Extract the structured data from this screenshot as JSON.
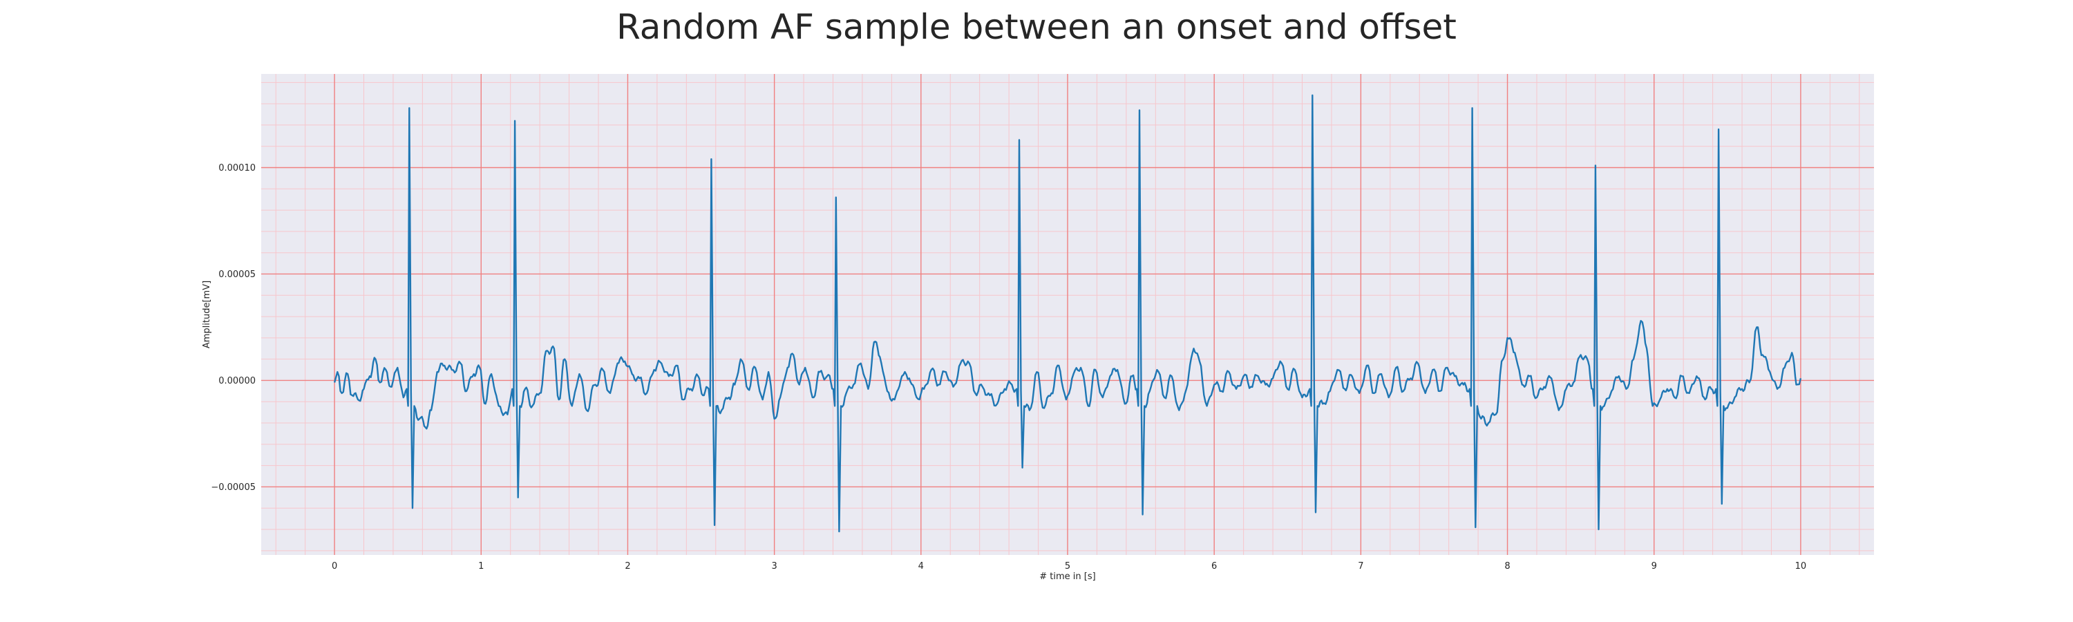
{
  "chart_data": {
    "type": "line",
    "title": "Random AF sample between an onset and offset",
    "xlabel": "# time in [s]",
    "ylabel": "Amplitude[mV]",
    "xlim": [
      -0.5,
      10.5
    ],
    "ylim": [
      -8.2e-05,
      0.000144
    ],
    "x_ticks": [
      0,
      1,
      2,
      3,
      4,
      5,
      6,
      7,
      8,
      9,
      10
    ],
    "x_tick_labels": [
      "0",
      "1",
      "2",
      "3",
      "4",
      "5",
      "6",
      "7",
      "8",
      "9",
      "10"
    ],
    "y_ticks": [
      -5e-05,
      0.0,
      5e-05,
      0.0001
    ],
    "y_tick_labels": [
      "−0.00005",
      "0.00000",
      "0.00005",
      "0.00010"
    ],
    "grid": true,
    "colors": {
      "line": "#1f77b4",
      "major_grid": "#f08080",
      "minor_grid": "#f7c6cc",
      "plot_bg": "#eaeaf2"
    },
    "r_peaks": [
      {
        "t": 0.51,
        "peak": 0.000128,
        "trough": -6e-05
      },
      {
        "t": 1.23,
        "peak": 0.000122,
        "trough": -5.5e-05
      },
      {
        "t": 2.57,
        "peak": 0.000104,
        "trough": -6.8e-05
      },
      {
        "t": 3.42,
        "peak": 8.6e-05,
        "trough": -7.1e-05
      },
      {
        "t": 4.67,
        "peak": 0.000113,
        "trough": -4.1e-05
      },
      {
        "t": 5.49,
        "peak": 0.000127,
        "trough": -6.3e-05
      },
      {
        "t": 6.67,
        "peak": 0.000134,
        "trough": -6.2e-05
      },
      {
        "t": 7.76,
        "peak": 0.000128,
        "trough": -6.9e-05
      },
      {
        "t": 8.6,
        "peak": 0.000101,
        "trough": -7e-05
      },
      {
        "t": 9.44,
        "peak": 0.000118,
        "trough": -5.8e-05
      }
    ],
    "baseline_points": [
      [
        0.0,
        -1e-06
      ],
      [
        0.02,
        4e-06
      ],
      [
        0.05,
        -6e-06
      ],
      [
        0.09,
        3e-06
      ],
      [
        0.12,
        -7e-06
      ],
      [
        0.16,
        -9e-06
      ],
      [
        0.2,
        -4e-06
      ],
      [
        0.24,
        2e-06
      ],
      [
        0.28,
        1e-05
      ],
      [
        0.31,
        -1e-06
      ],
      [
        0.35,
        5e-06
      ],
      [
        0.39,
        -3e-06
      ],
      [
        0.43,
        6e-06
      ],
      [
        0.47,
        -8e-06
      ],
      [
        0.58,
        -1.8e-05
      ],
      [
        0.62,
        -2.2e-05
      ],
      [
        0.66,
        -1.4e-05
      ],
      [
        0.7,
        4e-06
      ],
      [
        0.75,
        7e-06
      ],
      [
        0.8,
        5e-06
      ],
      [
        0.86,
        8e-06
      ],
      [
        0.9,
        -5e-06
      ],
      [
        0.95,
        3e-06
      ],
      [
        0.99,
        6e-06
      ],
      [
        1.03,
        -1.1e-05
      ],
      [
        1.07,
        3e-06
      ],
      [
        1.12,
        -1.2e-05
      ],
      [
        1.18,
        -1.6e-05
      ],
      [
        1.3,
        -4e-06
      ],
      [
        1.35,
        -1.2e-05
      ],
      [
        1.4,
        -6e-06
      ],
      [
        1.45,
        1.4e-05
      ],
      [
        1.49,
        1.6e-05
      ],
      [
        1.53,
        -9e-06
      ],
      [
        1.57,
        1e-05
      ],
      [
        1.62,
        -1.2e-05
      ],
      [
        1.67,
        3e-06
      ],
      [
        1.72,
        -1.4e-05
      ],
      [
        1.78,
        -2e-06
      ],
      [
        1.83,
        5e-06
      ],
      [
        1.88,
        -6e-06
      ],
      [
        1.93,
        8e-06
      ],
      [
        1.98,
        9e-06
      ],
      [
        2.03,
        3e-06
      ],
      [
        2.08,
        1e-06
      ],
      [
        2.13,
        -6e-06
      ],
      [
        2.18,
        5e-06
      ],
      [
        2.23,
        8e-06
      ],
      [
        2.28,
        2e-06
      ],
      [
        2.33,
        7e-06
      ],
      [
        2.38,
        -9e-06
      ],
      [
        2.43,
        -4e-06
      ],
      [
        2.48,
        2e-06
      ],
      [
        2.52,
        -7e-06
      ],
      [
        2.64,
        -1.4e-05
      ],
      [
        2.69,
        -8e-06
      ],
      [
        2.73,
        -2e-06
      ],
      [
        2.77,
        1e-05
      ],
      [
        2.82,
        -4e-06
      ],
      [
        2.87,
        6e-06
      ],
      [
        2.92,
        -9e-06
      ],
      [
        2.96,
        4e-06
      ],
      [
        3.0,
        -1.8e-05
      ],
      [
        3.04,
        -8e-06
      ],
      [
        3.09,
        6e-06
      ],
      [
        3.13,
        1.2e-05
      ],
      [
        3.17,
        -2e-06
      ],
      [
        3.21,
        6e-06
      ],
      [
        3.26,
        -8e-06
      ],
      [
        3.31,
        4e-06
      ],
      [
        3.36,
        2e-06
      ],
      [
        3.49,
        -6e-06
      ],
      [
        3.54,
        -2e-06
      ],
      [
        3.59,
        8e-06
      ],
      [
        3.64,
        -4e-06
      ],
      [
        3.68,
        1.8e-05
      ],
      [
        3.72,
        1.1e-05
      ],
      [
        3.77,
        -5e-06
      ],
      [
        3.82,
        -9e-06
      ],
      [
        3.87,
        2e-06
      ],
      [
        3.92,
        1e-06
      ],
      [
        3.97,
        -8e-06
      ],
      [
        4.02,
        -4e-06
      ],
      [
        4.07,
        5e-06
      ],
      [
        4.12,
        -2e-06
      ],
      [
        4.17,
        4e-06
      ],
      [
        4.22,
        -3e-06
      ],
      [
        4.27,
        8e-06
      ],
      [
        4.32,
        9e-06
      ],
      [
        4.37,
        -6e-06
      ],
      [
        4.42,
        -3e-06
      ],
      [
        4.47,
        -7e-06
      ],
      [
        4.52,
        -1.1e-05
      ],
      [
        4.57,
        -4e-06
      ],
      [
        4.62,
        -2e-06
      ],
      [
        4.74,
        -1.4e-05
      ],
      [
        4.79,
        4e-06
      ],
      [
        4.84,
        -1.3e-05
      ],
      [
        4.89,
        -6e-06
      ],
      [
        4.94,
        7e-06
      ],
      [
        4.99,
        -9e-06
      ],
      [
        5.04,
        3e-06
      ],
      [
        5.09,
        6e-06
      ],
      [
        5.14,
        -1.2e-05
      ],
      [
        5.19,
        5e-06
      ],
      [
        5.24,
        -8e-06
      ],
      [
        5.29,
        2e-06
      ],
      [
        5.34,
        5e-06
      ],
      [
        5.39,
        -1.1e-05
      ],
      [
        5.44,
        2e-06
      ],
      [
        5.56,
        -5e-06
      ],
      [
        5.61,
        5e-06
      ],
      [
        5.66,
        -8e-06
      ],
      [
        5.71,
        2e-06
      ],
      [
        5.76,
        -1.4e-05
      ],
      [
        5.81,
        -4e-06
      ],
      [
        5.86,
        1.5e-05
      ],
      [
        5.9,
        9e-06
      ],
      [
        5.95,
        -1.2e-05
      ],
      [
        6.0,
        -2e-06
      ],
      [
        6.05,
        -5e-06
      ],
      [
        6.1,
        4e-06
      ],
      [
        6.15,
        -4e-06
      ],
      [
        6.2,
        2e-06
      ],
      [
        6.25,
        -3e-06
      ],
      [
        6.3,
        2e-06
      ],
      [
        6.35,
        -2e-06
      ],
      [
        6.4,
        1e-06
      ],
      [
        6.45,
        9e-06
      ],
      [
        6.5,
        -4e-06
      ],
      [
        6.55,
        5e-06
      ],
      [
        6.6,
        -8e-06
      ],
      [
        6.74,
        -1.1e-05
      ],
      [
        6.79,
        -5e-06
      ],
      [
        6.84,
        5e-06
      ],
      [
        6.89,
        -4e-06
      ],
      [
        6.94,
        2e-06
      ],
      [
        6.99,
        -6e-06
      ],
      [
        7.04,
        7e-06
      ],
      [
        7.09,
        -6e-06
      ],
      [
        7.14,
        3e-06
      ],
      [
        7.19,
        -8e-06
      ],
      [
        7.24,
        6e-06
      ],
      [
        7.29,
        -5e-06
      ],
      [
        7.34,
        1e-06
      ],
      [
        7.39,
        8e-06
      ],
      [
        7.44,
        -6e-06
      ],
      [
        7.49,
        5e-06
      ],
      [
        7.54,
        -5e-06
      ],
      [
        7.59,
        6e-06
      ],
      [
        7.64,
        2e-06
      ],
      [
        7.7,
        -2e-06
      ],
      [
        7.82,
        -1.8e-05
      ],
      [
        7.87,
        -2e-05
      ],
      [
        7.92,
        -1.6e-05
      ],
      [
        7.97,
        1e-05
      ],
      [
        8.0,
        2e-05
      ],
      [
        8.05,
        1.3e-05
      ],
      [
        8.1,
        -2e-06
      ],
      [
        8.15,
        2e-06
      ],
      [
        8.2,
        -8e-06
      ],
      [
        8.25,
        -3e-06
      ],
      [
        8.3,
        1e-06
      ],
      [
        8.35,
        -1.4e-05
      ],
      [
        8.4,
        -4e-06
      ],
      [
        8.45,
        -1e-06
      ],
      [
        8.5,
        1.2e-05
      ],
      [
        8.55,
        9e-06
      ],
      [
        8.66,
        -1.2e-05
      ],
      [
        8.71,
        -5e-06
      ],
      [
        8.76,
        2e-06
      ],
      [
        8.81,
        -4e-06
      ],
      [
        8.86,
        1e-05
      ],
      [
        8.91,
        2.8e-05
      ],
      [
        8.95,
        1.5e-05
      ],
      [
        8.99,
        -1.2e-05
      ],
      [
        9.04,
        -9e-06
      ],
      [
        9.09,
        -4e-06
      ],
      [
        9.14,
        -8e-06
      ],
      [
        9.19,
        2e-06
      ],
      [
        9.24,
        -6e-06
      ],
      [
        9.29,
        2e-06
      ],
      [
        9.34,
        -8e-06
      ],
      [
        9.39,
        -4e-06
      ],
      [
        9.5,
        -1.3e-05
      ],
      [
        9.55,
        -8e-06
      ],
      [
        9.6,
        -4e-06
      ],
      [
        9.65,
        -1e-06
      ],
      [
        9.7,
        2.5e-05
      ],
      [
        9.74,
        1.2e-05
      ],
      [
        9.79,
        4e-06
      ],
      [
        9.84,
        -4e-06
      ],
      [
        9.89,
        6e-06
      ],
      [
        9.94,
        1.3e-05
      ],
      [
        9.97,
        -2e-06
      ],
      [
        10.0,
        1e-06
      ]
    ]
  }
}
